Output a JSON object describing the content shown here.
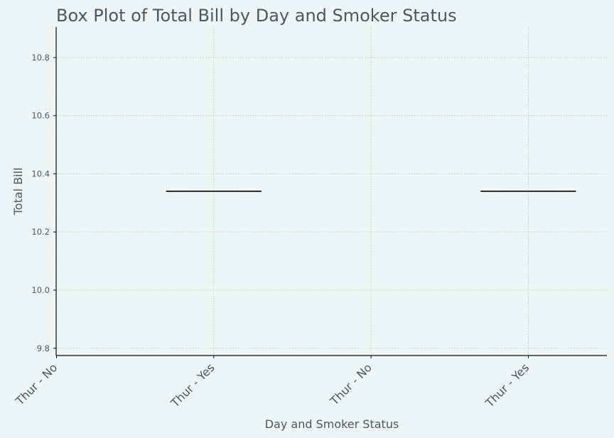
{
  "chart_data": {
    "type": "box",
    "title": "Box Plot of Total Bill by Day and Smoker Status",
    "xlabel": "Day and Smoker Status",
    "ylabel": "Total Bill",
    "categories": [
      "Thur - No",
      "Thur - Yes",
      "Thur - No",
      "Thur - Yes"
    ],
    "ylim": [
      9.775,
      10.905
    ],
    "yticks": [
      9.8,
      10.0,
      10.2,
      10.4,
      10.6,
      10.8
    ],
    "grid": true,
    "boxes": [
      {
        "category": "Thur - No",
        "min": null,
        "q1": null,
        "median": null,
        "q3": null,
        "max": null
      },
      {
        "category": "Thur - Yes",
        "min": 10.34,
        "q1": 10.34,
        "median": 10.34,
        "q3": 10.34,
        "max": 10.34
      },
      {
        "category": "Thur - No",
        "min": null,
        "q1": null,
        "median": null,
        "q3": null,
        "max": null
      },
      {
        "category": "Thur - Yes",
        "min": 10.34,
        "q1": 10.34,
        "median": 10.34,
        "q3": 10.34,
        "max": 10.34
      }
    ]
  }
}
